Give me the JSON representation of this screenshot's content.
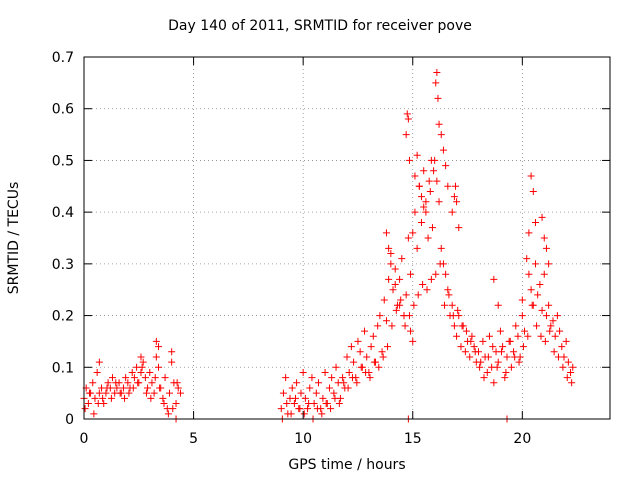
{
  "chart_data": {
    "type": "scatter",
    "title": "Day 140 of 2011, SRMTID for receiver pove",
    "xlabel": "GPS time / hours",
    "ylabel": "SRMTID / TECUs",
    "xlim": [
      0,
      24
    ],
    "ylim": [
      0,
      0.7
    ],
    "xticks": [
      0,
      5,
      10,
      15,
      20
    ],
    "yticks": [
      0,
      0.1,
      0.2,
      0.3,
      0.4,
      0.5,
      0.6,
      0.7
    ],
    "xtick_labels": [
      "0",
      "5",
      "10",
      "15",
      "20"
    ],
    "ytick_labels": [
      "0",
      "0.1",
      "0.2",
      "0.3",
      "0.4",
      "0.5",
      "0.6",
      "0.7"
    ],
    "grid": true,
    "marker": "+",
    "series": [
      {
        "name": "SRMTID",
        "color": "#ff0000",
        "x": [
          0.0,
          0.1,
          0.2,
          0.3,
          0.4,
          0.5,
          0.6,
          0.7,
          0.8,
          0.9,
          1.0,
          1.1,
          1.2,
          1.3,
          1.4,
          1.5,
          1.6,
          1.7,
          1.8,
          1.9,
          2.0,
          2.1,
          2.2,
          2.3,
          2.4,
          2.5,
          2.6,
          2.7,
          2.8,
          2.9,
          3.0,
          3.1,
          3.2,
          3.3,
          3.4,
          3.5,
          3.6,
          3.7,
          3.8,
          3.9,
          4.0,
          4.1,
          4.2,
          4.3,
          4.4,
          0.05,
          0.25,
          0.45,
          0.65,
          0.85,
          1.05,
          1.25,
          1.45,
          1.65,
          1.85,
          2.05,
          2.25,
          2.45,
          2.65,
          2.85,
          3.05,
          3.25,
          3.45,
          3.65,
          3.85,
          4.05,
          4.25,
          0.7,
          3.3,
          3.4,
          4.0,
          2.6,
          9.0,
          9.1,
          9.2,
          9.3,
          9.4,
          9.5,
          9.6,
          9.7,
          9.8,
          9.9,
          10.0,
          10.1,
          10.2,
          10.3,
          10.4,
          10.5,
          10.6,
          10.7,
          10.8,
          10.9,
          11.0,
          11.1,
          11.2,
          11.3,
          11.4,
          11.5,
          11.6,
          11.7,
          11.8,
          11.9,
          12.0,
          12.1,
          12.2,
          12.3,
          12.4,
          12.5,
          12.6,
          12.7,
          12.8,
          12.9,
          13.0,
          13.1,
          13.2,
          13.3,
          13.4,
          13.5,
          13.6,
          13.7,
          13.8,
          13.9,
          9.05,
          9.25,
          9.45,
          9.65,
          9.85,
          10.05,
          10.25,
          10.45,
          10.65,
          10.85,
          11.05,
          11.25,
          11.45,
          11.65,
          11.85,
          12.05,
          12.25,
          12.45,
          12.65,
          12.85,
          13.05,
          13.25,
          13.45,
          13.65,
          13.85,
          14.0,
          14.1,
          14.2,
          14.3,
          14.4,
          14.5,
          14.6,
          14.7,
          14.8,
          14.9,
          15.0,
          15.1,
          15.2,
          15.3,
          15.4,
          15.5,
          15.6,
          15.7,
          15.8,
          15.9,
          16.0,
          16.1,
          16.2,
          16.3,
          16.4,
          16.5,
          16.6,
          16.7,
          16.8,
          16.9,
          17.0,
          17.1,
          17.2,
          17.3,
          17.4,
          17.5,
          17.6,
          17.7,
          17.8,
          17.9,
          14.05,
          14.25,
          14.45,
          14.65,
          14.85,
          15.05,
          15.25,
          15.45,
          15.65,
          15.85,
          16.05,
          16.25,
          16.45,
          16.65,
          16.85,
          17.05,
          17.25,
          17.45,
          17.65,
          17.85,
          14.7,
          14.75,
          14.8,
          14.85,
          15.1,
          15.2,
          15.3,
          15.4,
          15.5,
          15.6,
          15.75,
          15.85,
          15.95,
          16.05,
          16.1,
          16.15,
          16.2,
          16.3,
          16.4,
          16.5,
          16.6,
          16.8,
          16.9,
          16.95,
          17.0,
          17.1,
          13.8,
          13.9,
          14.0,
          14.2,
          14.4,
          14.6,
          14.9,
          15.0,
          18.0,
          18.1,
          18.2,
          18.3,
          18.4,
          18.5,
          18.6,
          18.7,
          18.8,
          18.9,
          19.0,
          19.1,
          19.2,
          19.3,
          19.4,
          19.5,
          19.6,
          19.7,
          19.8,
          19.9,
          20.0,
          20.1,
          20.2,
          20.3,
          20.4,
          20.5,
          20.6,
          20.7,
          20.8,
          20.9,
          21.0,
          21.1,
          21.2,
          21.3,
          21.4,
          21.5,
          21.6,
          21.7,
          21.8,
          21.9,
          22.0,
          22.1,
          22.2,
          22.3,
          18.05,
          18.25,
          18.45,
          18.65,
          18.85,
          19.05,
          19.25,
          19.45,
          19.65,
          19.85,
          20.05,
          20.25,
          20.45,
          20.65,
          20.85,
          21.05,
          21.25,
          21.45,
          21.65,
          21.85,
          22.05,
          22.25,
          18.7,
          18.9,
          20.3,
          20.4,
          20.5,
          20.6,
          20.9,
          21.0,
          21.1,
          21.2,
          20.0,
          14.8,
          19.3,
          4.2
        ],
        "y": [
          0.04,
          0.06,
          0.03,
          0.05,
          0.07,
          0.04,
          0.09,
          0.05,
          0.06,
          0.03,
          0.05,
          0.07,
          0.06,
          0.08,
          0.05,
          0.06,
          0.07,
          0.05,
          0.06,
          0.08,
          0.07,
          0.06,
          0.09,
          0.08,
          0.1,
          0.07,
          0.09,
          0.11,
          0.08,
          0.06,
          0.09,
          0.07,
          0.05,
          0.12,
          0.1,
          0.06,
          0.04,
          0.08,
          0.02,
          0.05,
          0.11,
          0.07,
          0.03,
          0.06,
          0.05,
          0.02,
          0.05,
          0.01,
          0.03,
          0.04,
          0.06,
          0.04,
          0.07,
          0.05,
          0.04,
          0.05,
          0.06,
          0.07,
          0.1,
          0.05,
          0.04,
          0.08,
          0.06,
          0.03,
          0.01,
          0.02,
          0.07,
          0.11,
          0.15,
          0.14,
          0.13,
          0.12,
          0.02,
          0.05,
          0.08,
          0.01,
          0.04,
          0.06,
          0.03,
          0.07,
          0.02,
          0.05,
          0.09,
          0.04,
          0.02,
          0.06,
          0.08,
          0.03,
          0.05,
          0.07,
          0.02,
          0.04,
          0.09,
          0.03,
          0.06,
          0.08,
          0.05,
          0.1,
          0.07,
          0.04,
          0.08,
          0.06,
          0.12,
          0.09,
          0.14,
          0.11,
          0.08,
          0.15,
          0.13,
          0.1,
          0.17,
          0.12,
          0.09,
          0.14,
          0.16,
          0.11,
          0.18,
          0.2,
          0.13,
          0.23,
          0.19,
          0.27,
          0.0,
          0.03,
          0.01,
          0.04,
          0.02,
          0.01,
          0.03,
          0.0,
          0.02,
          0.01,
          0.03,
          0.02,
          0.04,
          0.03,
          0.07,
          0.06,
          0.08,
          0.07,
          0.1,
          0.09,
          0.08,
          0.11,
          0.1,
          0.12,
          0.14,
          0.32,
          0.25,
          0.29,
          0.22,
          0.27,
          0.31,
          0.2,
          0.24,
          0.35,
          0.28,
          0.36,
          0.4,
          0.33,
          0.45,
          0.38,
          0.48,
          0.42,
          0.35,
          0.44,
          0.37,
          0.5,
          0.46,
          0.42,
          0.33,
          0.3,
          0.28,
          0.25,
          0.2,
          0.22,
          0.18,
          0.16,
          0.2,
          0.14,
          0.18,
          0.13,
          0.15,
          0.12,
          0.16,
          0.14,
          0.11,
          0.18,
          0.21,
          0.23,
          0.18,
          0.2,
          0.22,
          0.24,
          0.26,
          0.25,
          0.27,
          0.28,
          0.3,
          0.22,
          0.24,
          0.2,
          0.21,
          0.18,
          0.17,
          0.15,
          0.13,
          0.55,
          0.59,
          0.58,
          0.5,
          0.47,
          0.51,
          0.45,
          0.43,
          0.41,
          0.4,
          0.46,
          0.5,
          0.48,
          0.65,
          0.67,
          0.62,
          0.57,
          0.55,
          0.52,
          0.49,
          0.45,
          0.4,
          0.43,
          0.45,
          0.42,
          0.37,
          0.36,
          0.33,
          0.3,
          0.26,
          0.22,
          0.2,
          0.17,
          0.15,
          0.13,
          0.11,
          0.15,
          0.12,
          0.09,
          0.16,
          0.1,
          0.07,
          0.13,
          0.11,
          0.17,
          0.14,
          0.08,
          0.12,
          0.15,
          0.1,
          0.13,
          0.18,
          0.16,
          0.12,
          0.2,
          0.17,
          0.31,
          0.28,
          0.25,
          0.22,
          0.3,
          0.24,
          0.26,
          0.21,
          0.28,
          0.2,
          0.22,
          0.18,
          0.19,
          0.16,
          0.2,
          0.17,
          0.14,
          0.12,
          0.15,
          0.11,
          0.09,
          0.1,
          0.1,
          0.08,
          0.12,
          0.14,
          0.1,
          0.13,
          0.09,
          0.15,
          0.12,
          0.11,
          0.14,
          0.16,
          0.22,
          0.18,
          0.16,
          0.15,
          0.17,
          0.13,
          0.12,
          0.1,
          0.08,
          0.07,
          0.27,
          0.22,
          0.36,
          0.47,
          0.44,
          0.38,
          0.39,
          0.35,
          0.33,
          0.3,
          0.23,
          0.0,
          0.0,
          0.0
        ]
      }
    ]
  }
}
